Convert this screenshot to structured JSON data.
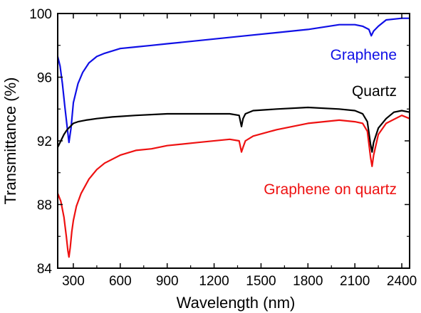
{
  "chart_data": {
    "type": "line",
    "xlabel": "Wavelength (nm)",
    "ylabel": "Transmittance (%)",
    "xlim": [
      200,
      2450
    ],
    "ylim": [
      84,
      100
    ],
    "xticks": [
      300,
      600,
      900,
      1200,
      1500,
      1800,
      2100,
      2400
    ],
    "yticks": [
      84,
      88,
      92,
      96,
      100
    ],
    "xtick_labels": [
      "300",
      "600",
      "900",
      "1200",
      "1500",
      "1800",
      "2100",
      "2400"
    ],
    "ytick_labels": [
      "84",
      "88",
      "92",
      "96",
      "100"
    ],
    "grid": false,
    "legend": "none (series labelled inline)",
    "series": [
      {
        "name": "Graphene",
        "color": "#1010e6",
        "x": [
          200,
          215,
          230,
          245,
          260,
          272,
          285,
          300,
          330,
          360,
          400,
          450,
          500,
          600,
          700,
          800,
          900,
          1000,
          1200,
          1400,
          1600,
          1800,
          2000,
          2100,
          2150,
          2190,
          2205,
          2220,
          2250,
          2300,
          2400,
          2450
        ],
        "values": [
          97.3,
          96.7,
          95.6,
          94.2,
          92.9,
          91.9,
          92.8,
          94.4,
          95.6,
          96.3,
          96.9,
          97.3,
          97.5,
          97.8,
          97.9,
          98.0,
          98.1,
          98.2,
          98.4,
          98.6,
          98.8,
          99.0,
          99.3,
          99.3,
          99.2,
          99.0,
          98.6,
          98.9,
          99.2,
          99.6,
          99.7,
          99.7
        ]
      },
      {
        "name": "Quartz",
        "color": "#000000",
        "x": [
          200,
          220,
          240,
          260,
          280,
          300,
          330,
          380,
          450,
          550,
          700,
          900,
          1100,
          1300,
          1360,
          1375,
          1385,
          1400,
          1450,
          1600,
          1800,
          2000,
          2100,
          2150,
          2180,
          2200,
          2210,
          2220,
          2250,
          2300,
          2350,
          2400,
          2450
        ],
        "values": [
          91.6,
          92.0,
          92.4,
          92.7,
          92.9,
          93.1,
          93.2,
          93.3,
          93.4,
          93.5,
          93.6,
          93.7,
          93.7,
          93.7,
          93.6,
          92.9,
          93.4,
          93.7,
          93.9,
          94.0,
          94.1,
          94.0,
          93.9,
          93.7,
          93.2,
          91.8,
          91.3,
          91.9,
          92.8,
          93.4,
          93.8,
          93.9,
          93.8
        ]
      },
      {
        "name": "Graphene on quartz",
        "color": "#ee1111",
        "x": [
          200,
          220,
          240,
          255,
          265,
          272,
          280,
          290,
          300,
          320,
          350,
          400,
          450,
          500,
          600,
          700,
          800,
          900,
          1100,
          1300,
          1360,
          1375,
          1385,
          1400,
          1450,
          1600,
          1800,
          2000,
          2100,
          2150,
          2180,
          2200,
          2210,
          2220,
          2250,
          2300,
          2400,
          2450
        ],
        "values": [
          88.7,
          88.2,
          87.2,
          86.0,
          85.1,
          84.7,
          85.3,
          86.3,
          87.0,
          87.9,
          88.7,
          89.6,
          90.2,
          90.6,
          91.1,
          91.4,
          91.5,
          91.7,
          91.9,
          92.1,
          92.0,
          91.3,
          91.6,
          92.0,
          92.3,
          92.7,
          93.1,
          93.3,
          93.2,
          93.1,
          92.6,
          91.0,
          90.4,
          91.1,
          92.4,
          93.1,
          93.6,
          93.4
        ]
      }
    ],
    "annotations": [
      {
        "text": "Graphene",
        "color": "#1010e6"
      },
      {
        "text": "Quartz",
        "color": "#000000"
      },
      {
        "text": "Graphene on quartz",
        "color": "#ee1111"
      }
    ]
  }
}
